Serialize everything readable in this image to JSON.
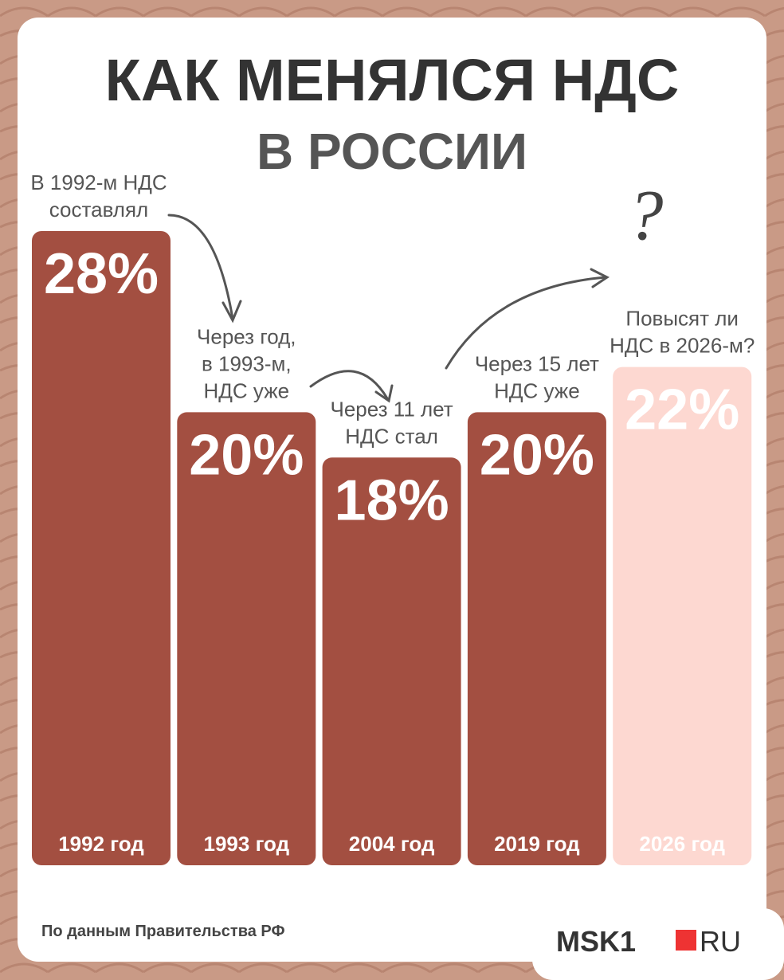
{
  "chart_data": {
    "type": "bar",
    "title": "КАК МЕНЯЛСЯ НДС",
    "subtitle": "В РОССИИ",
    "categories": [
      "1992 год",
      "1993 год",
      "2004 год",
      "2019 год",
      "2026 год"
    ],
    "values": [
      28,
      20,
      18,
      20,
      22
    ],
    "value_labels": [
      "28%",
      "20%",
      "18%",
      "20%",
      "22%"
    ],
    "colors": [
      "#a34f41",
      "#a34f41",
      "#a34f41",
      "#a34f41",
      "#fdd8d1"
    ],
    "annotations": [
      [
        "В 1992-м НДС",
        "составлял"
      ],
      [
        "Через год,",
        "в 1993-м,",
        "НДС уже"
      ],
      [
        "Через 11 лет",
        "НДС стал"
      ],
      [
        "Через 15 лет",
        "НДС уже"
      ],
      [
        "Повысят ли",
        "НДС в 2026-м?"
      ]
    ],
    "question_mark": "?",
    "source": "По данным Правительства РФ",
    "brand": [
      "MSK1",
      "RU"
    ]
  }
}
